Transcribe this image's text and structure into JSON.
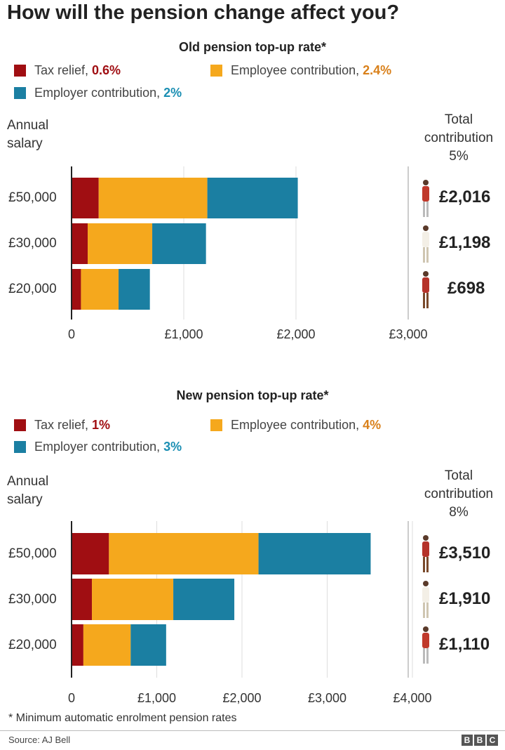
{
  "title": "How will the pension change affect you?",
  "colors": {
    "tax_relief": "#a00e12",
    "employee": "#f5a81d",
    "employer": "#1b7fa2",
    "employee_text": "#d9801a",
    "employer_text": "#1b8fb3"
  },
  "chart_data": [
    {
      "type": "bar",
      "orientation": "horizontal",
      "stacked": true,
      "title": "Old pension top-up rate*",
      "ylabel": "Annual salary",
      "total_header": "Total contribution",
      "total_rate": "5%",
      "categories": [
        "£50,000",
        "£30,000",
        "£20,000"
      ],
      "series": [
        {
          "name": "Tax relief,",
          "rate": "0.6%",
          "values": [
            242,
            144,
            84
          ]
        },
        {
          "name": "Employee contribution,",
          "rate": "2.4%",
          "values": [
            968,
            575,
            335
          ]
        },
        {
          "name": "Employer contribution,",
          "rate": "2%",
          "values": [
            806,
            479,
            279
          ]
        }
      ],
      "totals": [
        "£2,016",
        "£1,198",
        "£698"
      ],
      "xlim": [
        0,
        3000
      ],
      "xticks": [
        "0",
        "£1,000",
        "£2,000",
        "£3,000"
      ],
      "grid": true
    },
    {
      "type": "bar",
      "orientation": "horizontal",
      "stacked": true,
      "title": "New pension top-up rate*",
      "ylabel": "Annual salary",
      "total_header": "Total contribution",
      "total_rate": "8%",
      "categories": [
        "£50,000",
        "£30,000",
        "£20,000"
      ],
      "series": [
        {
          "name": "Tax relief,",
          "rate": "1%",
          "values": [
            439,
            239,
            139
          ]
        },
        {
          "name": "Employee contribution,",
          "rate": "4%",
          "values": [
            1755,
            955,
            555
          ]
        },
        {
          "name": "Employer contribution,",
          "rate": "3%",
          "values": [
            1316,
            716,
            416
          ]
        }
      ],
      "totals": [
        "£3,510",
        "£1,910",
        "£1,110"
      ],
      "xlim": [
        0,
        4000
      ],
      "xticks": [
        "0",
        "£1,000",
        "£2,000",
        "£3,000",
        "£4,000"
      ],
      "grid": true
    }
  ],
  "footnote": "* Minimum automatic enrolment pension rates",
  "source": "Source: AJ Bell",
  "logo": [
    "B",
    "B",
    "C"
  ]
}
